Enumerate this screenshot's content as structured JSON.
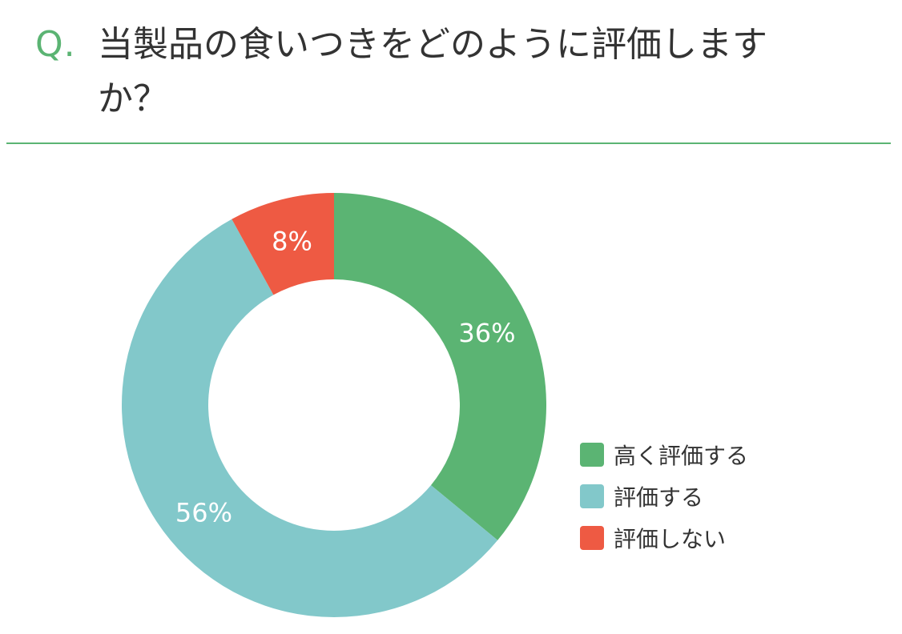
{
  "question": {
    "mark": "Q.",
    "text": "当製品の食いつきをどのように評価しますか？"
  },
  "colors": {
    "accent": "#5bb473",
    "slice_high": "#5bb473",
    "slice_mid": "#82c8ca",
    "slice_low": "#ee5a43",
    "text": "#333333"
  },
  "chart_data": {
    "type": "pie",
    "variant": "donut",
    "title": "当製品の食いつきをどのように評価しますか？",
    "categories": [
      "高く評価する",
      "評価する",
      "評価しない"
    ],
    "values": [
      36,
      56,
      8
    ],
    "labels": [
      "36%",
      "56%",
      "8%"
    ],
    "unit": "%",
    "legend_position": "right"
  },
  "legend": {
    "items": [
      {
        "label": "高く評価する",
        "color": "#5bb473"
      },
      {
        "label": "評価する",
        "color": "#82c8ca"
      },
      {
        "label": "評価しない",
        "color": "#ee5a43"
      }
    ]
  }
}
